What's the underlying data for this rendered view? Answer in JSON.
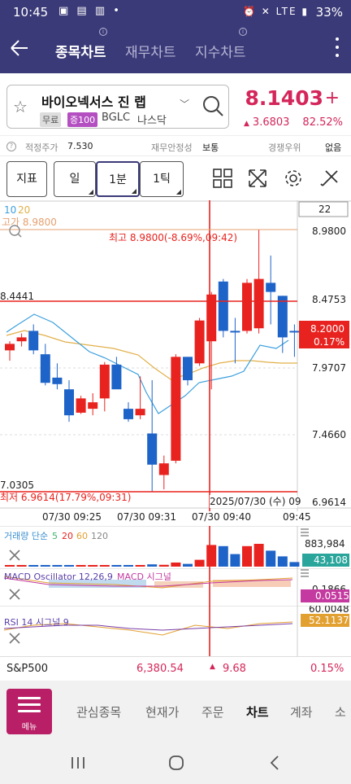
{
  "status_bar": {
    "time": "10:45",
    "battery": "33%",
    "network": "LTE"
  },
  "header": {
    "tabs": [
      {
        "label": "종목차트",
        "active": true
      },
      {
        "label": "재무차트",
        "active": false
      },
      {
        "label": "지수차트",
        "active": false
      }
    ]
  },
  "stock": {
    "name": "바이오넥서스 진 랩",
    "badge_free": "무료",
    "badge_margin": "증100",
    "ticker": "BGLC",
    "market": "나스닥",
    "price": "8.1403",
    "change": "3.6803",
    "change_pct": "82.52%"
  },
  "info": {
    "fair_price_label": "적정주가",
    "fair_price_value": "7.530",
    "stability_label": "재무안정성",
    "stability_value": "보통",
    "rank_label": "경쟁우위",
    "rank_value": "없음"
  },
  "toolbar": {
    "indicator": "지표",
    "period": "일",
    "minute": "1분",
    "tick": "1틱"
  },
  "chart": {
    "corner_box": "22",
    "ma_labels": [
      "10",
      "20"
    ],
    "high_label": "고가 8.9800",
    "high_note": "최고 8.9800(-8.69%,09:42)",
    "low_note": "최저 6.9614(17.79%,09:31)",
    "crosshair_price": "8.4441",
    "bottom_left_price": "7.0305",
    "y_ticks": [
      "8.9800",
      "8.4753",
      "7.9707",
      "7.4660",
      "6.9614"
    ],
    "current_price": "8.2000",
    "current_pct": "0.17%",
    "x_ticks": [
      "07/30 09:25",
      "07/30 09:31",
      "07/30 09:40",
      "09:45"
    ],
    "crosshair_time": "2025/07/30 (수) 09"
  },
  "volume_panel": {
    "label_prefix": "거래량 단순",
    "ma": [
      "5",
      "20",
      "60",
      "120"
    ],
    "max": "883,984",
    "current": "43,108"
  },
  "macd_panel": {
    "label": "MACD Oscillator 12,26,9",
    "label2": "MACD 시그널",
    "tick": "0.1866",
    "current": "0.0515"
  },
  "rsi_panel": {
    "label": "RSI 14 시그널 9",
    "tick": "60.0048",
    "current": "52.1137"
  },
  "index_row": {
    "name": "S&P500",
    "value": "6,380.54",
    "change": "9.68",
    "pct": "0.15%"
  },
  "bottom_nav": {
    "menu": "메뉴",
    "items": [
      {
        "label": "관심종목",
        "active": false
      },
      {
        "label": "현재가",
        "active": false
      },
      {
        "label": "주문",
        "active": false
      },
      {
        "label": "차트",
        "active": true
      },
      {
        "label": "계좌",
        "active": false
      },
      {
        "label": "소",
        "active": false
      }
    ]
  },
  "colors": {
    "header_bg": "#3b3a78",
    "up": "#e8231f",
    "down": "#1e63c8",
    "accent": "#d4265a",
    "menu_bg": "#b81f66"
  },
  "chart_data": {
    "type": "candlestick",
    "y_range": [
      6.9614,
      8.98
    ],
    "candles": [
      {
        "o": 8.05,
        "h": 8.12,
        "l": 7.97,
        "c": 8.1,
        "dir": "up"
      },
      {
        "o": 8.12,
        "h": 8.18,
        "l": 8.08,
        "c": 8.15,
        "dir": "up"
      },
      {
        "o": 8.2,
        "h": 8.25,
        "l": 8.02,
        "c": 8.05,
        "dir": "down"
      },
      {
        "o": 8.02,
        "h": 8.1,
        "l": 7.78,
        "c": 7.8,
        "dir": "down"
      },
      {
        "o": 7.84,
        "h": 7.95,
        "l": 7.75,
        "c": 7.79,
        "dir": "down"
      },
      {
        "o": 7.75,
        "h": 7.82,
        "l": 7.5,
        "c": 7.55,
        "dir": "down"
      },
      {
        "o": 7.57,
        "h": 7.7,
        "l": 7.56,
        "c": 7.68,
        "dir": "up"
      },
      {
        "o": 7.65,
        "h": 7.72,
        "l": 7.55,
        "c": 7.6,
        "dir": "up"
      },
      {
        "o": 7.68,
        "h": 7.96,
        "l": 7.58,
        "c": 7.94,
        "dir": "up"
      },
      {
        "o": 7.94,
        "h": 8.0,
        "l": 7.76,
        "c": 7.75,
        "dir": "down"
      },
      {
        "o": 7.6,
        "h": 7.65,
        "l": 7.5,
        "c": 7.52,
        "dir": "down"
      },
      {
        "o": 7.6,
        "h": 7.85,
        "l": 7.52,
        "c": 7.55,
        "dir": "up"
      },
      {
        "o": 7.41,
        "h": 7.82,
        "l": 6.96,
        "c": 7.17,
        "dir": "down"
      },
      {
        "o": 7.09,
        "h": 7.24,
        "l": 6.98,
        "c": 7.18,
        "dir": "up"
      },
      {
        "o": 7.2,
        "h": 8.02,
        "l": 7.18,
        "c": 8.0,
        "dir": "up"
      },
      {
        "o": 8.0,
        "h": 8.0,
        "l": 7.78,
        "c": 7.82,
        "dir": "down"
      },
      {
        "o": 7.95,
        "h": 8.3,
        "l": 7.93,
        "c": 8.28,
        "dir": "up"
      },
      {
        "o": 8.12,
        "h": 8.5,
        "l": 7.75,
        "c": 8.48,
        "dir": "up"
      },
      {
        "o": 8.2,
        "h": 8.6,
        "l": 8.15,
        "c": 8.58,
        "dir": "down"
      },
      {
        "o": 8.2,
        "h": 8.3,
        "l": 7.95,
        "c": 8.2,
        "dir": "down"
      },
      {
        "o": 8.2,
        "h": 8.6,
        "l": 8.18,
        "c": 8.57,
        "dir": "up"
      },
      {
        "o": 8.6,
        "h": 8.98,
        "l": 8.18,
        "c": 8.22,
        "dir": "up"
      },
      {
        "o": 8.57,
        "h": 8.78,
        "l": 8.25,
        "c": 8.5,
        "dir": "down"
      },
      {
        "o": 8.47,
        "h": 8.47,
        "l": 8.03,
        "c": 8.15,
        "dir": "down"
      },
      {
        "o": 8.2,
        "h": 8.25,
        "l": 8.0,
        "c": 8.2,
        "dir": "down"
      }
    ],
    "volume": [
      0.05,
      0.05,
      0.05,
      0.05,
      0.04,
      0.06,
      0.05,
      0.05,
      0.06,
      0.05,
      0.05,
      0.06,
      0.1,
      0.08,
      0.18,
      0.12,
      0.3,
      0.95,
      0.9,
      0.55,
      0.9,
      1.0,
      0.7,
      0.45,
      0.2
    ]
  }
}
